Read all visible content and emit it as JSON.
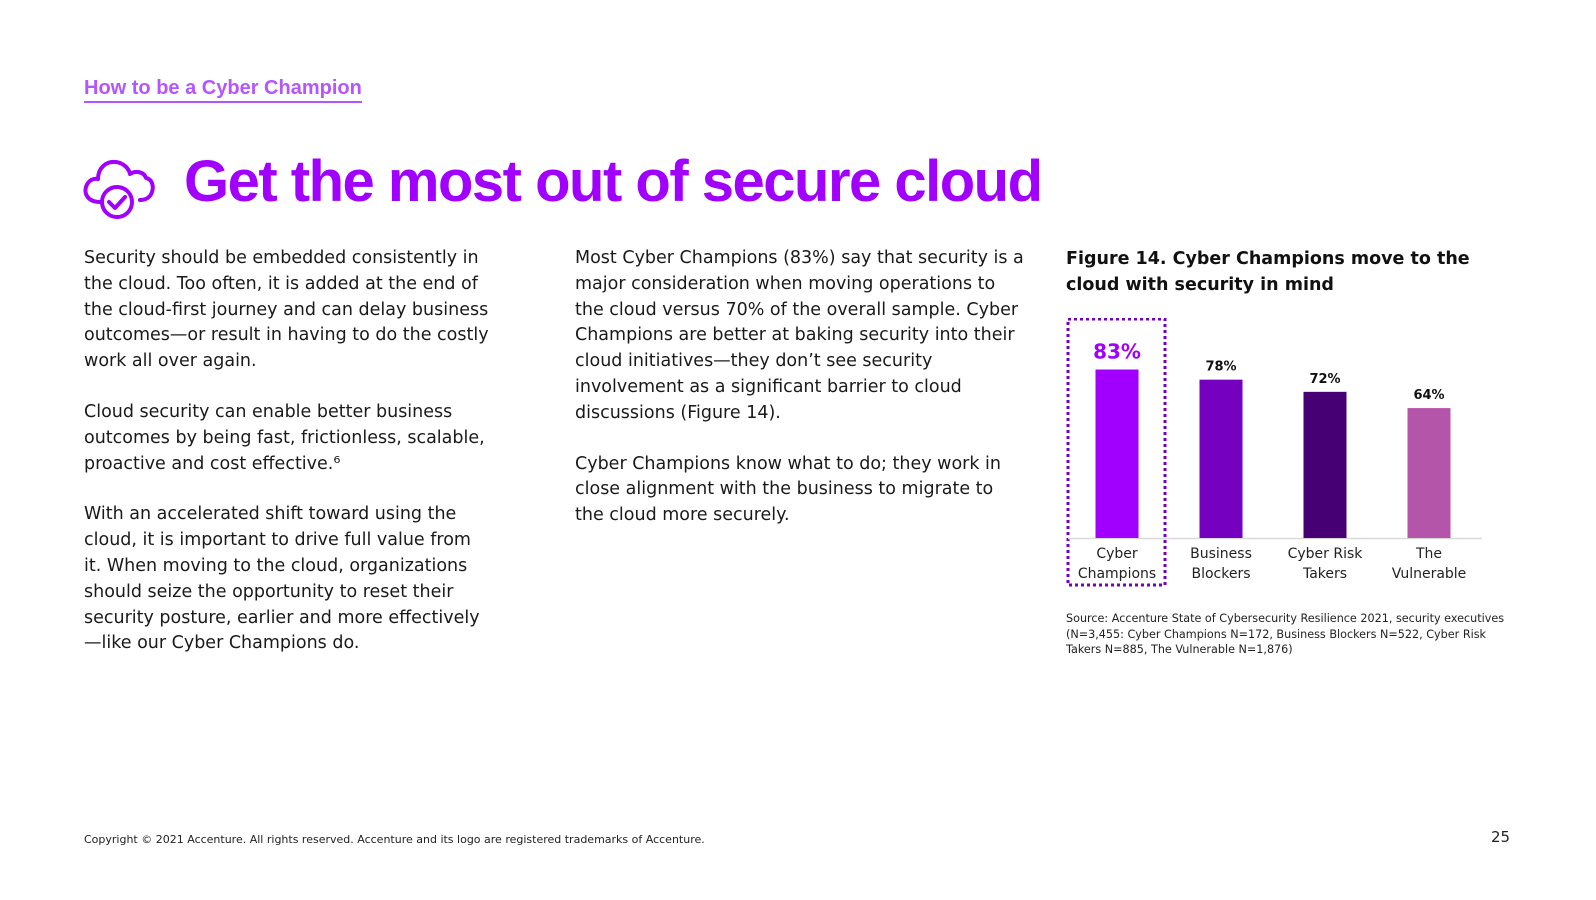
{
  "header": {
    "section_link": "How to be a Cyber Champion",
    "title": "Get the most out of secure cloud",
    "icon": "cloud-check-icon"
  },
  "column_left": {
    "paragraphs": [
      "Security should be embedded consistently in the cloud. Too often, it is added at the end of the cloud-first journey and can delay business outcomes—or result in having to do the costly work all over again.",
      "Cloud security can enable better business outcomes by being fast, frictionless, scalable, proactive and cost effective.⁶",
      "With an accelerated shift toward using the cloud, it is important to drive full value from it. When moving to the cloud, organizations should seize the opportunity to reset their security posture, earlier and more effectively —like our Cyber Champions do."
    ]
  },
  "column_middle": {
    "paragraphs": [
      "Most Cyber Champions (83%) say that security is a major consideration when moving operations to the cloud versus 70% of the overall sample. Cyber Champions are better at baking security into their cloud initiatives—they don’t see security involvement as a significant barrier to cloud discussions (Figure 14).",
      "Cyber Champions know what to do; they work in close alignment with the business to migrate to the cloud more securely."
    ]
  },
  "figure": {
    "title": "Figure 14. Cyber Champions move to the cloud with security in mind",
    "source": "Source: Accenture State of Cybersecurity Resilience 2021, security executives (N=3,455: Cyber Champions N=172, Business Blockers N=522, Cyber Risk Takers N=885, The Vulnerable N=1,876)"
  },
  "chart_data": {
    "type": "bar",
    "categories": [
      [
        "Cyber",
        "Champions"
      ],
      [
        "Business",
        "Blockers"
      ],
      [
        "Cyber Risk",
        "Takers"
      ],
      [
        "The",
        "Vulnerable"
      ]
    ],
    "values": [
      83,
      78,
      72,
      64
    ],
    "value_labels": [
      "83%",
      "78%",
      "72%",
      "64%"
    ],
    "colors": [
      "#a100ff",
      "#7500c0",
      "#460073",
      "#b455aa"
    ],
    "highlight_index": 0,
    "highlight_color": "#7500c0",
    "ylim": [
      0,
      100
    ],
    "grid": false,
    "title": "Figure 14. Cyber Champions move to the cloud with security in mind",
    "xlabel": "",
    "ylabel": ""
  },
  "footer": {
    "copyright": "Copyright © 2021 Accenture. All rights reserved. Accenture and its logo are registered trademarks of Accenture.",
    "page_number": "25"
  }
}
